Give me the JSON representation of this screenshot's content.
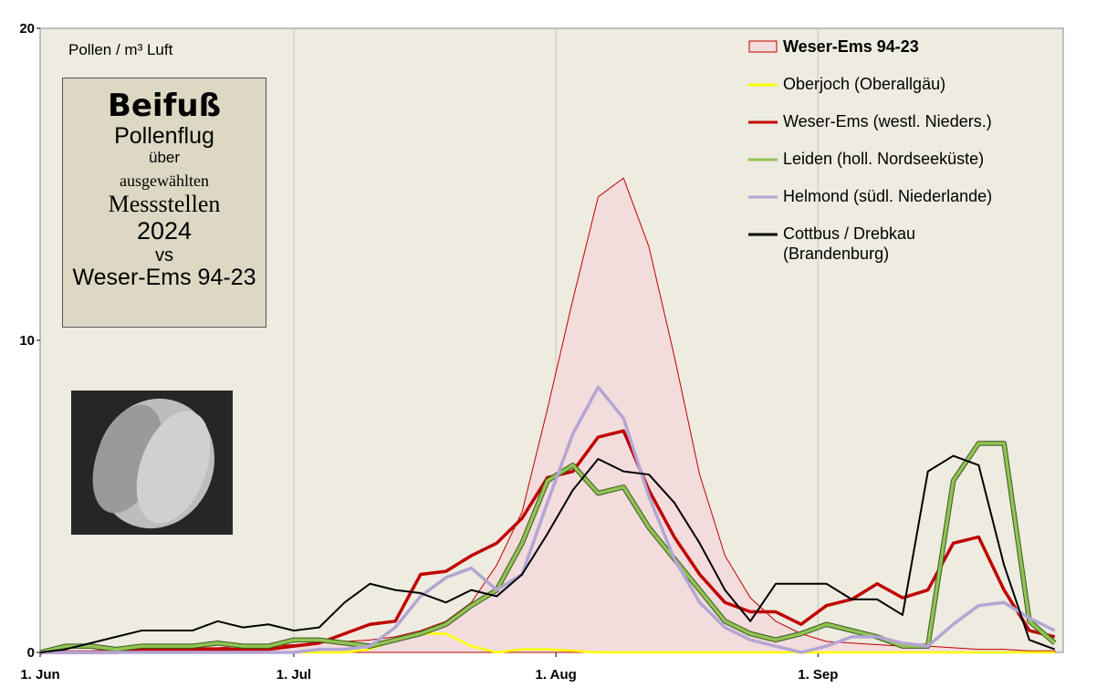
{
  "chart_data": {
    "type": "line",
    "y_label": "Pollen / m³ Luft",
    "info_box": [
      "Beifuß",
      "Pollenflug",
      "über",
      "ausgewählten",
      "Messstellen",
      "2024",
      "vs",
      "Weser-Ems 94-23"
    ],
    "x": [
      0,
      3,
      6,
      9,
      12,
      15,
      18,
      21,
      24,
      27,
      30,
      33,
      36,
      39,
      42,
      45,
      48,
      51,
      54,
      57,
      60,
      63,
      66,
      69,
      72,
      75,
      78,
      81,
      84,
      87,
      90,
      93,
      96,
      99,
      102,
      105,
      108,
      111,
      114,
      117,
      120
    ],
    "xlim": [
      0,
      121
    ],
    "xticks": [
      {
        "value": 0,
        "label": "1. Jun"
      },
      {
        "value": 30,
        "label": "1. Jul"
      },
      {
        "value": 61,
        "label": "1. Aug"
      },
      {
        "value": 92,
        "label": "1. Sep"
      }
    ],
    "ylim": [
      0,
      20
    ],
    "yticks": [
      0,
      10,
      20
    ],
    "grid": "x",
    "series": [
      {
        "name": "Weser-Ems  94-23",
        "color": "#c00000",
        "fill": "#f2dcdc",
        "kind": "area",
        "values": [
          0,
          0.05,
          0.05,
          0.1,
          0.1,
          0.1,
          0.15,
          0.15,
          0.2,
          0.2,
          0.25,
          0.3,
          0.35,
          0.4,
          0.5,
          0.7,
          1.0,
          1.6,
          2.8,
          4.5,
          7.8,
          11.3,
          14.6,
          15.2,
          13,
          9.5,
          5.7,
          3.1,
          1.75,
          1.0,
          0.6,
          0.35,
          0.3,
          0.25,
          0.2,
          0.2,
          0.15,
          0.1,
          0.1,
          0.05,
          0.05
        ]
      },
      {
        "name": "Oberjoch (Oberallgäu)",
        "color": "#ffff00",
        "kind": "line",
        "values": [
          0,
          0,
          0,
          0,
          0,
          0,
          0,
          0,
          0,
          0,
          0,
          0,
          0,
          0.1,
          0.4,
          0.6,
          0.6,
          0.2,
          0,
          0.1,
          0.1,
          0.05,
          0,
          0,
          0,
          0,
          0,
          0,
          0,
          0,
          0,
          0,
          0,
          0,
          0,
          0,
          0,
          0,
          0,
          0,
          0
        ]
      },
      {
        "name": "Weser-Ems (westl. Nieders.)",
        "color": "#c00000",
        "kind": "line",
        "values": [
          0,
          0,
          0,
          0,
          0.1,
          0.1,
          0.1,
          0.1,
          0.1,
          0.1,
          0.2,
          0.3,
          0.6,
          0.9,
          1.0,
          2.5,
          2.6,
          3.1,
          3.5,
          4.3,
          5.6,
          5.8,
          6.9,
          7.1,
          5.2,
          3.7,
          2.5,
          1.6,
          1.3,
          1.3,
          0.9,
          1.5,
          1.7,
          2.2,
          1.75,
          2.0,
          3.5,
          3.7,
          2.0,
          0.7,
          0.5
        ]
      },
      {
        "name": "Leiden (holl. Nordseeküste)",
        "color": "#92c353",
        "kind": "line",
        "values": [
          0,
          0.2,
          0.2,
          0.1,
          0.2,
          0.2,
          0.2,
          0.3,
          0.2,
          0.2,
          0.4,
          0.4,
          0.3,
          0.2,
          0.4,
          0.6,
          0.9,
          1.5,
          2.0,
          3.5,
          5.5,
          6.0,
          5.1,
          5.3,
          4.0,
          3.0,
          2.0,
          1.0,
          0.6,
          0.4,
          0.6,
          0.9,
          0.7,
          0.5,
          0.2,
          0.2,
          5.5,
          6.7,
          6.7,
          1.0,
          0.3
        ]
      },
      {
        "name": "Helmond (südl. Niederlande)",
        "color": "#b3a6d4",
        "kind": "line",
        "values": [
          0,
          0,
          0,
          0,
          0,
          0,
          0,
          0,
          0,
          0,
          0,
          0.1,
          0.1,
          0.2,
          0.8,
          1.8,
          2.4,
          2.7,
          2.0,
          2.5,
          4.8,
          7.0,
          8.5,
          7.5,
          5.0,
          3.0,
          1.6,
          0.8,
          0.4,
          0.2,
          0,
          0.2,
          0.5,
          0.5,
          0.3,
          0.2,
          0.9,
          1.5,
          1.6,
          1.1,
          0.7
        ]
      },
      {
        "name": "Cottbus / Drebkau\n(Brandenburg)",
        "color": "#000000",
        "kind": "line",
        "values": [
          0,
          0.1,
          0.3,
          0.5,
          0.7,
          0.7,
          0.7,
          1.0,
          0.8,
          0.9,
          0.7,
          0.8,
          1.6,
          2.2,
          2.0,
          1.9,
          1.6,
          2.0,
          1.8,
          2.5,
          3.8,
          5.2,
          6.2,
          5.8,
          5.7,
          4.8,
          3.5,
          2.0,
          1.0,
          2.2,
          2.2,
          2.2,
          1.7,
          1.7,
          1.2,
          5.8,
          6.3,
          6.0,
          2.8,
          0.4,
          0.1
        ]
      }
    ]
  }
}
